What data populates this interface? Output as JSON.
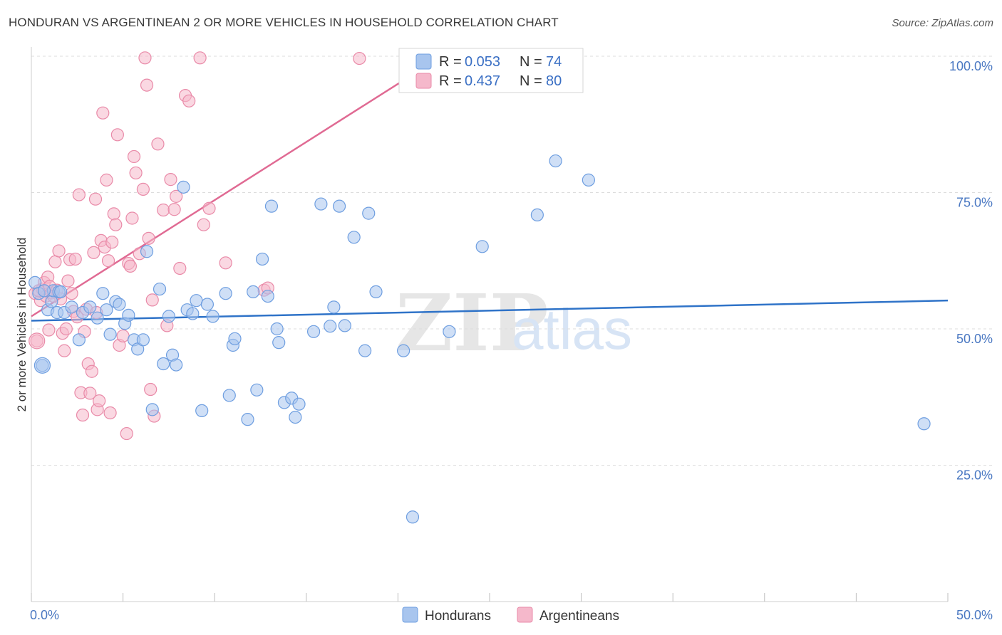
{
  "title": "HONDURAN VS ARGENTINEAN 2 OR MORE VEHICLES IN HOUSEHOLD CORRELATION CHART",
  "source": "Source: ZipAtlas.com",
  "watermark": {
    "part1": "ZIP",
    "part2": "atlas"
  },
  "legend": {
    "r_label": "R =",
    "n_label": "N =",
    "rows": [
      {
        "series": "Hondurans",
        "r": "0.053",
        "n": "74"
      },
      {
        "series": "Argentineans",
        "r": "0.437",
        "n": "80"
      }
    ]
  },
  "colors": {
    "blue_fill": "#a8c5ee",
    "blue_stroke": "#6e9ee0",
    "blue_line": "#2f73c8",
    "pink_fill": "#f5b8cb",
    "pink_stroke": "#e98aa8",
    "pink_line": "#e06a93",
    "grid": "#dcdcdc",
    "tick_text": "#4a78c2"
  },
  "chart_data": {
    "type": "scatter",
    "title": "HONDURAN VS ARGENTINEAN 2 OR MORE VEHICLES IN HOUSEHOLD CORRELATION CHART",
    "xlabel": "",
    "ylabel": "2 or more Vehicles in Household",
    "xlim": [
      0,
      50
    ],
    "ylim": [
      0,
      100
    ],
    "x_tick_labels": [
      "0.0%",
      "50.0%"
    ],
    "y_ticks": [
      25,
      50,
      75,
      100
    ],
    "y_tick_labels": [
      "25.0%",
      "50.0%",
      "75.0%",
      "100.0%"
    ],
    "grid": true,
    "series": [
      {
        "name": "Hondurans",
        "r": 0.053,
        "n": 74,
        "trend": {
          "x": [
            0,
            50
          ],
          "y": [
            51.5,
            55.2
          ]
        },
        "points": [
          [
            0.2,
            58.5
          ],
          [
            0.4,
            56.5
          ],
          [
            0.6,
            43.3
          ],
          [
            0.9,
            53.5
          ],
          [
            1.1,
            55
          ],
          [
            1.2,
            57
          ],
          [
            1.4,
            53
          ],
          [
            1.5,
            56.8
          ],
          [
            1.8,
            53
          ],
          [
            2.2,
            54
          ],
          [
            2.6,
            48
          ],
          [
            2.8,
            53
          ],
          [
            3.2,
            54
          ],
          [
            3.6,
            52
          ],
          [
            3.9,
            56.5
          ],
          [
            4.1,
            53.5
          ],
          [
            4.3,
            49
          ],
          [
            4.6,
            55
          ],
          [
            4.8,
            54.5
          ],
          [
            5.1,
            51
          ],
          [
            5.3,
            52.5
          ],
          [
            5.6,
            48
          ],
          [
            5.8,
            46.3
          ],
          [
            6.1,
            48
          ],
          [
            6.3,
            64.2
          ],
          [
            6.6,
            35.2
          ],
          [
            7.0,
            57.3
          ],
          [
            7.2,
            43.6
          ],
          [
            7.5,
            52.3
          ],
          [
            7.7,
            45.2
          ],
          [
            7.9,
            43.4
          ],
          [
            8.3,
            76
          ],
          [
            8.5,
            53.5
          ],
          [
            8.8,
            52.8
          ],
          [
            9.0,
            55.2
          ],
          [
            9.3,
            35
          ],
          [
            9.6,
            54.5
          ],
          [
            9.9,
            52.3
          ],
          [
            10.6,
            56.5
          ],
          [
            10.8,
            37.8
          ],
          [
            11.0,
            47
          ],
          [
            11.1,
            48.2
          ],
          [
            11.8,
            33.4
          ],
          [
            12.1,
            56.8
          ],
          [
            12.3,
            38.8
          ],
          [
            12.6,
            62.8
          ],
          [
            12.9,
            56
          ],
          [
            13.1,
            72.5
          ],
          [
            13.4,
            50
          ],
          [
            13.5,
            47.5
          ],
          [
            13.8,
            36.5
          ],
          [
            14.2,
            37.3
          ],
          [
            14.4,
            33.8
          ],
          [
            14.6,
            36.2
          ],
          [
            15.4,
            49.5
          ],
          [
            15.8,
            72.9
          ],
          [
            16.3,
            50.5
          ],
          [
            16.5,
            54
          ],
          [
            16.8,
            72.5
          ],
          [
            17.1,
            50.6
          ],
          [
            17.6,
            66.8
          ],
          [
            18.2,
            46
          ],
          [
            18.4,
            71.2
          ],
          [
            18.8,
            56.8
          ],
          [
            20.3,
            46
          ],
          [
            20.8,
            15.5
          ],
          [
            22.8,
            49.5
          ],
          [
            24.6,
            65.1
          ],
          [
            27.6,
            70.9
          ],
          [
            28.6,
            80.8
          ],
          [
            30.4,
            77.3
          ],
          [
            48.7,
            32.6
          ],
          [
            0.7,
            57
          ],
          [
            1.6,
            56.8
          ]
        ]
      },
      {
        "name": "Argentineans",
        "r": 0.437,
        "n": 80,
        "trend": {
          "x": [
            0,
            20.5
          ],
          "y": [
            52.3,
            96.0
          ]
        },
        "points": [
          [
            0.2,
            56.5
          ],
          [
            0.3,
            47.8
          ],
          [
            0.5,
            55.2
          ],
          [
            0.6,
            57.3
          ],
          [
            0.7,
            58.5
          ],
          [
            0.8,
            56
          ],
          [
            0.9,
            59.5
          ],
          [
            1.0,
            57.8
          ],
          [
            1.1,
            56.6
          ],
          [
            1.3,
            62.3
          ],
          [
            1.4,
            57.1
          ],
          [
            1.5,
            64.3
          ],
          [
            1.6,
            55.5
          ],
          [
            1.7,
            49.2
          ],
          [
            1.8,
            46
          ],
          [
            1.9,
            50
          ],
          [
            2.0,
            58.8
          ],
          [
            2.1,
            62.7
          ],
          [
            2.3,
            53.2
          ],
          [
            2.4,
            62.8
          ],
          [
            2.5,
            52.2
          ],
          [
            2.6,
            74.6
          ],
          [
            2.7,
            38.3
          ],
          [
            2.8,
            34.2
          ],
          [
            2.9,
            49.5
          ],
          [
            3.0,
            53.6
          ],
          [
            3.1,
            43.6
          ],
          [
            3.2,
            38.2
          ],
          [
            3.3,
            42.2
          ],
          [
            3.4,
            64
          ],
          [
            3.5,
            73.8
          ],
          [
            3.6,
            35.2
          ],
          [
            3.7,
            36.8
          ],
          [
            3.8,
            66.2
          ],
          [
            3.9,
            89.6
          ],
          [
            4.0,
            65
          ],
          [
            4.1,
            77.3
          ],
          [
            4.2,
            62.5
          ],
          [
            4.3,
            34.6
          ],
          [
            4.4,
            65.9
          ],
          [
            4.5,
            71.1
          ],
          [
            4.6,
            69.1
          ],
          [
            4.7,
            85.6
          ],
          [
            4.8,
            47
          ],
          [
            5.0,
            48.7
          ],
          [
            5.2,
            30.8
          ],
          [
            5.3,
            62
          ],
          [
            5.4,
            61.5
          ],
          [
            5.5,
            70.3
          ],
          [
            5.6,
            81.6
          ],
          [
            5.7,
            78.6
          ],
          [
            5.9,
            63.8
          ],
          [
            6.1,
            75.6
          ],
          [
            6.2,
            99.7
          ],
          [
            6.3,
            94.7
          ],
          [
            6.4,
            66.6
          ],
          [
            6.5,
            38.9
          ],
          [
            6.6,
            55.3
          ],
          [
            6.7,
            34
          ],
          [
            6.9,
            83.9
          ],
          [
            7.2,
            71.8
          ],
          [
            7.4,
            50.6
          ],
          [
            7.6,
            77.4
          ],
          [
            7.8,
            71.9
          ],
          [
            7.9,
            74.3
          ],
          [
            8.1,
            61.1
          ],
          [
            8.4,
            92.8
          ],
          [
            8.6,
            91.8
          ],
          [
            9.2,
            99.7
          ],
          [
            9.4,
            69.1
          ],
          [
            9.7,
            72.1
          ],
          [
            10.6,
            62.1
          ],
          [
            12.7,
            57.1
          ],
          [
            12.9,
            57.5
          ],
          [
            17.9,
            99.6
          ],
          [
            0.4,
            57
          ],
          [
            1.2,
            56
          ],
          [
            0.95,
            49.8
          ],
          [
            2.2,
            56.5
          ],
          [
            3.55,
            53
          ]
        ]
      }
    ]
  }
}
